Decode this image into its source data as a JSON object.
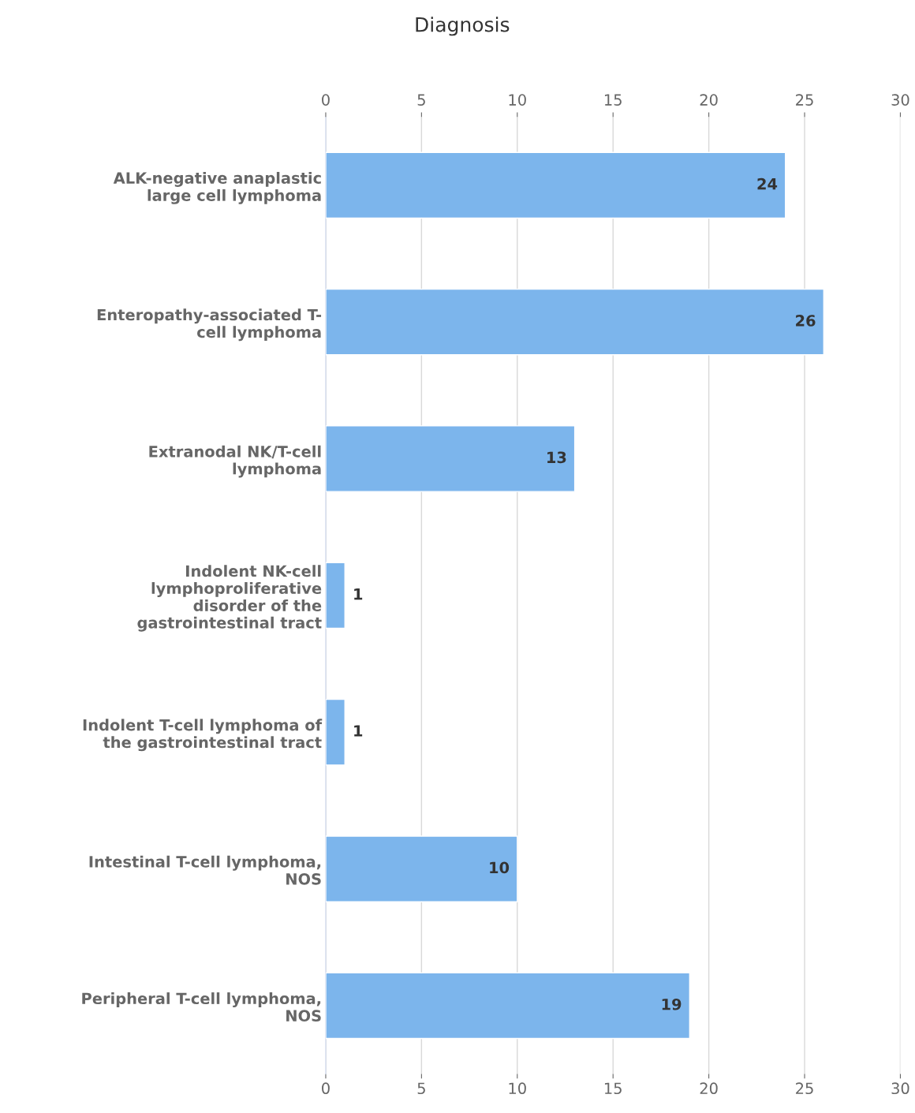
{
  "chart_data": {
    "type": "bar",
    "orientation": "horizontal",
    "title": "Diagnosis",
    "categories": [
      "ALK-negative anaplastic\nlarge cell lymphoma",
      "Enteropathy-associated T-\ncell lymphoma",
      "Extranodal NK/T-cell\nlymphoma",
      "Indolent NK-cell\nlymphoproliferative\ndisorder of the\ngastrointestinal tract",
      "Indolent T-cell lymphoma of\nthe gastrointestinal tract",
      "Intestinal T-cell lymphoma,\nNOS",
      "Peripheral T-cell lymphoma,\nNOS"
    ],
    "values": [
      24,
      26,
      13,
      1,
      1,
      10,
      19
    ],
    "color": "#7cb5ec",
    "xlim": [
      0,
      30
    ],
    "xticks": [
      0,
      5,
      10,
      15,
      20,
      25,
      30
    ],
    "x2lim": [
      0,
      30
    ],
    "x2ticks": [
      0,
      5,
      10,
      15,
      20,
      25,
      30
    ],
    "grid": "x",
    "data_labels": true
  }
}
